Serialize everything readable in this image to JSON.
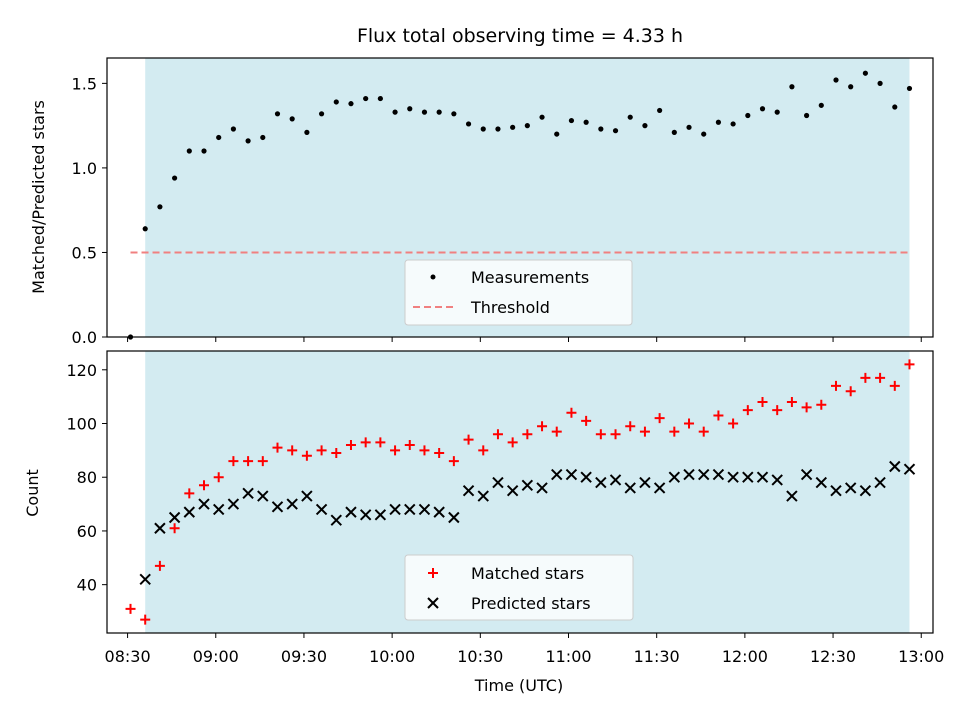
{
  "colors": {
    "shade": "#d3ebf1",
    "measurement": "#000000",
    "threshold": "#f08080",
    "matched": "#ff0000",
    "predicted": "#000000"
  },
  "chart_data": [
    {
      "type": "scatter",
      "title": "Flux total observing time = 4.33 h",
      "ylabel": "Matched/Predicted stars",
      "ylim": [
        0,
        1.65
      ],
      "yticks": [
        "0.0",
        "0.5",
        "1.0",
        "1.5"
      ],
      "shaded_interval": [
        "08:36",
        "12:56"
      ],
      "threshold": {
        "value": 0.5,
        "x_range": [
          "08:31",
          "12:56"
        ]
      },
      "legend": {
        "placement": "lower-center",
        "entries": [
          "Measurements",
          "Threshold"
        ]
      },
      "series": [
        {
          "name": "Measurements",
          "x": [
            "08:31",
            "08:36",
            "08:41",
            "08:46",
            "08:51",
            "08:56",
            "09:01",
            "09:06",
            "09:11",
            "09:16",
            "09:21",
            "09:26",
            "09:31",
            "09:36",
            "09:41",
            "09:46",
            "09:51",
            "09:56",
            "10:01",
            "10:06",
            "10:11",
            "10:16",
            "10:21",
            "10:26",
            "10:31",
            "10:36",
            "10:41",
            "10:46",
            "10:51",
            "10:56",
            "11:01",
            "11:06",
            "11:11",
            "11:16",
            "11:21",
            "11:26",
            "11:31",
            "11:36",
            "11:41",
            "11:46",
            "11:51",
            "11:56",
            "12:01",
            "12:06",
            "12:11",
            "12:16",
            "12:21",
            "12:26",
            "12:31",
            "12:36",
            "12:41",
            "12:46",
            "12:51",
            "12:56"
          ],
          "y": [
            0.0,
            0.64,
            0.77,
            0.94,
            1.1,
            1.1,
            1.18,
            1.23,
            1.16,
            1.18,
            1.32,
            1.29,
            1.21,
            1.32,
            1.39,
            1.38,
            1.41,
            1.41,
            1.33,
            1.35,
            1.33,
            1.33,
            1.32,
            1.26,
            1.23,
            1.23,
            1.24,
            1.25,
            1.3,
            1.2,
            1.28,
            1.27,
            1.23,
            1.22,
            1.3,
            1.25,
            1.34,
            1.21,
            1.24,
            1.2,
            1.27,
            1.26,
            1.31,
            1.35,
            1.33,
            1.48,
            1.31,
            1.37,
            1.52,
            1.48,
            1.56,
            1.5,
            1.36,
            1.47
          ]
        }
      ]
    },
    {
      "type": "scatter",
      "xlabel": "Time (UTC)",
      "ylabel": "Count",
      "ylim": [
        22,
        127
      ],
      "yticks": [
        "40",
        "60",
        "80",
        "100",
        "120"
      ],
      "xticks": [
        "08:30",
        "09:00",
        "09:30",
        "10:00",
        "10:30",
        "11:00",
        "11:30",
        "12:00",
        "12:30",
        "13:00"
      ],
      "shaded_interval": [
        "08:36",
        "12:56"
      ],
      "legend": {
        "placement": "lower-center",
        "entries": [
          "Matched stars",
          "Predicted stars"
        ]
      },
      "series": [
        {
          "name": "Matched stars",
          "x": [
            "08:31",
            "08:36",
            "08:41",
            "08:46",
            "08:51",
            "08:56",
            "09:01",
            "09:06",
            "09:11",
            "09:16",
            "09:21",
            "09:26",
            "09:31",
            "09:36",
            "09:41",
            "09:46",
            "09:51",
            "09:56",
            "10:01",
            "10:06",
            "10:11",
            "10:16",
            "10:21",
            "10:26",
            "10:31",
            "10:36",
            "10:41",
            "10:46",
            "10:51",
            "10:56",
            "11:01",
            "11:06",
            "11:11",
            "11:16",
            "11:21",
            "11:26",
            "11:31",
            "11:36",
            "11:41",
            "11:46",
            "11:51",
            "11:56",
            "12:01",
            "12:06",
            "12:11",
            "12:16",
            "12:21",
            "12:26",
            "12:31",
            "12:36",
            "12:41",
            "12:46",
            "12:51",
            "12:56"
          ],
          "y": [
            31,
            27,
            47,
            61,
            74,
            77,
            80,
            86,
            86,
            86,
            91,
            90,
            88,
            90,
            89,
            92,
            93,
            93,
            90,
            92,
            90,
            89,
            86,
            94,
            90,
            96,
            93,
            96,
            99,
            97,
            104,
            101,
            96,
            96,
            99,
            97,
            102,
            97,
            100,
            97,
            103,
            100,
            105,
            108,
            105,
            108,
            106,
            107,
            114,
            112,
            117,
            117,
            114,
            122
          ]
        },
        {
          "name": "Predicted stars",
          "x": [
            "08:36",
            "08:41",
            "08:46",
            "08:51",
            "08:56",
            "09:01",
            "09:06",
            "09:11",
            "09:16",
            "09:21",
            "09:26",
            "09:31",
            "09:36",
            "09:41",
            "09:46",
            "09:51",
            "09:56",
            "10:01",
            "10:06",
            "10:11",
            "10:16",
            "10:21",
            "10:26",
            "10:31",
            "10:36",
            "10:41",
            "10:46",
            "10:51",
            "10:56",
            "11:01",
            "11:06",
            "11:11",
            "11:16",
            "11:21",
            "11:26",
            "11:31",
            "11:36",
            "11:41",
            "11:46",
            "11:51",
            "11:56",
            "12:01",
            "12:06",
            "12:11",
            "12:16",
            "12:21",
            "12:26",
            "12:31",
            "12:36",
            "12:41",
            "12:46",
            "12:51",
            "12:56"
          ],
          "y": [
            42,
            61,
            65,
            67,
            70,
            68,
            70,
            74,
            73,
            69,
            70,
            73,
            68,
            64,
            67,
            66,
            66,
            68,
            68,
            68,
            67,
            65,
            75,
            73,
            78,
            75,
            77,
            76,
            81,
            81,
            80,
            78,
            79,
            76,
            78,
            76,
            80,
            81,
            81,
            81,
            80,
            80,
            80,
            79,
            73,
            81,
            78,
            75,
            76,
            75,
            78,
            84,
            83
          ]
        }
      ]
    }
  ]
}
